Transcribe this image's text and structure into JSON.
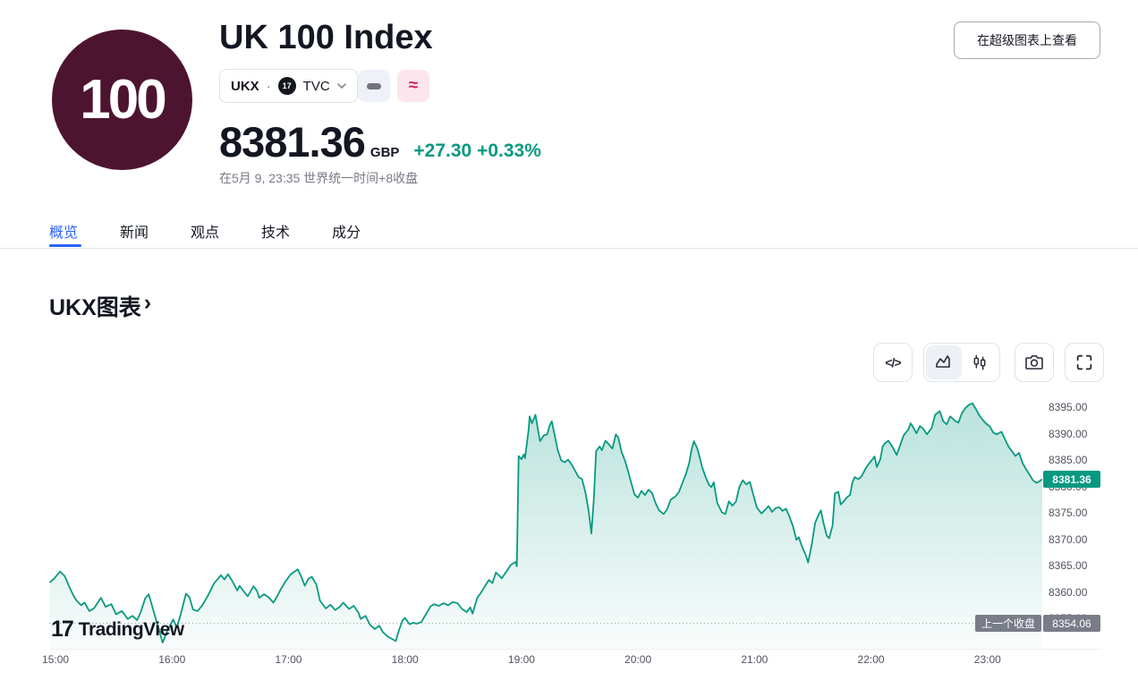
{
  "header": {
    "logo_text": "100",
    "title": "UK 100 Index",
    "symbol": "UKX",
    "separator": "·",
    "exchange": "TVC",
    "exchange_logo_text": "17",
    "price": "8381.36",
    "currency": "GBP",
    "change": "+27.30 +0.33%",
    "market_status": "在5月 9, 23:35 世界统一时间+8收盘",
    "supercharts_button": "在超级图表上查看"
  },
  "icons": {
    "code_glyph": "</>",
    "approx_glyph": "≈",
    "chevron_right": "›"
  },
  "tabs": {
    "overview": "概览",
    "news": "新闻",
    "ideas": "观点",
    "technicals": "技术",
    "components": "成分"
  },
  "section_title": "UKX图表",
  "watermark": {
    "mark": "17",
    "text": "TradingView"
  },
  "chart_data": {
    "type": "area",
    "title": "UKX图表",
    "line_color": "#089981",
    "grid": false,
    "last_price": 8381.36,
    "last_price_label": "8381.36",
    "prev_close": 8354.06,
    "prev_close_value_label": "8354.06",
    "prev_close_badge_label": "上一个收盘",
    "xlim_hours": [
      14.946,
      23.47
    ],
    "ylim": [
      8348.4,
      8397.6
    ],
    "x_ticks": [
      {
        "h": 15,
        "label": "15:00"
      },
      {
        "h": 16,
        "label": "16:00"
      },
      {
        "h": 17,
        "label": "17:00"
      },
      {
        "h": 18,
        "label": "18:00"
      },
      {
        "h": 19,
        "label": "19:00"
      },
      {
        "h": 20,
        "label": "20:00"
      },
      {
        "h": 21,
        "label": "21:00"
      },
      {
        "h": 22,
        "label": "22:00"
      },
      {
        "h": 23,
        "label": "23:00"
      }
    ],
    "y_ticks": [
      {
        "p": 8395,
        "label": "8395.00"
      },
      {
        "p": 8390,
        "label": "8390.00"
      },
      {
        "p": 8385,
        "label": "8385.00"
      },
      {
        "p": 8380,
        "label": "8380.00"
      },
      {
        "p": 8375,
        "label": "8375.00"
      },
      {
        "p": 8370,
        "label": "8370.00"
      },
      {
        "p": 8365,
        "label": "8365.00"
      },
      {
        "p": 8360,
        "label": "8360.00"
      },
      {
        "p": 8355,
        "label": "8355.00"
      }
    ],
    "series": [
      [
        14.95,
        8361.8
      ],
      [
        14.99,
        8362.6
      ],
      [
        15.04,
        8363.9
      ],
      [
        15.08,
        8363.0
      ],
      [
        15.12,
        8360.9
      ],
      [
        15.15,
        8359.5
      ],
      [
        15.18,
        8358.4
      ],
      [
        15.22,
        8357.5
      ],
      [
        15.25,
        8358.0
      ],
      [
        15.29,
        8356.4
      ],
      [
        15.33,
        8356.9
      ],
      [
        15.39,
        8358.9
      ],
      [
        15.43,
        8357.2
      ],
      [
        15.48,
        8357.7
      ],
      [
        15.52,
        8355.8
      ],
      [
        15.57,
        8356.4
      ],
      [
        15.62,
        8354.9
      ],
      [
        15.66,
        8355.5
      ],
      [
        15.7,
        8354.7
      ],
      [
        15.73,
        8356.1
      ],
      [
        15.77,
        8358.8
      ],
      [
        15.8,
        8359.6
      ],
      [
        15.83,
        8357.3
      ],
      [
        15.86,
        8355.0
      ],
      [
        15.89,
        8352.8
      ],
      [
        15.92,
        8350.4
      ],
      [
        15.96,
        8352.7
      ],
      [
        16.01,
        8354.8
      ],
      [
        16.04,
        8353.3
      ],
      [
        16.07,
        8355.4
      ],
      [
        16.12,
        8359.7
      ],
      [
        16.15,
        8359.0
      ],
      [
        16.18,
        8356.7
      ],
      [
        16.22,
        8356.4
      ],
      [
        16.26,
        8357.5
      ],
      [
        16.31,
        8359.4
      ],
      [
        16.36,
        8361.6
      ],
      [
        16.42,
        8363.2
      ],
      [
        16.45,
        8362.4
      ],
      [
        16.48,
        8363.4
      ],
      [
        16.52,
        8362.0
      ],
      [
        16.56,
        8360.3
      ],
      [
        16.58,
        8361.2
      ],
      [
        16.62,
        8360.0
      ],
      [
        16.65,
        8359.2
      ],
      [
        16.7,
        8361.1
      ],
      [
        16.73,
        8360.2
      ],
      [
        16.75,
        8358.9
      ],
      [
        16.79,
        8359.6
      ],
      [
        16.83,
        8359.0
      ],
      [
        16.87,
        8358.0
      ],
      [
        16.9,
        8359.1
      ],
      [
        16.93,
        8360.4
      ],
      [
        16.97,
        8361.9
      ],
      [
        17.02,
        8363.4
      ],
      [
        17.08,
        8364.3
      ],
      [
        17.11,
        8362.9
      ],
      [
        17.14,
        8361.2
      ],
      [
        17.17,
        8362.5
      ],
      [
        17.2,
        8362.9
      ],
      [
        17.24,
        8361.4
      ],
      [
        17.27,
        8358.4
      ],
      [
        17.32,
        8356.9
      ],
      [
        17.36,
        8357.6
      ],
      [
        17.4,
        8356.6
      ],
      [
        17.44,
        8357.2
      ],
      [
        17.47,
        8358.0
      ],
      [
        17.52,
        8356.8
      ],
      [
        17.56,
        8357.4
      ],
      [
        17.6,
        8356.1
      ],
      [
        17.62,
        8354.9
      ],
      [
        17.66,
        8355.5
      ],
      [
        17.7,
        8353.8
      ],
      [
        17.74,
        8353.0
      ],
      [
        17.78,
        8353.6
      ],
      [
        17.81,
        8352.4
      ],
      [
        17.85,
        8351.6
      ],
      [
        17.92,
        8350.7
      ],
      [
        17.95,
        8352.9
      ],
      [
        17.98,
        8354.7
      ],
      [
        18.0,
        8355.1
      ],
      [
        18.04,
        8353.9
      ],
      [
        18.07,
        8354.2
      ],
      [
        18.1,
        8354.0
      ],
      [
        18.14,
        8354.3
      ],
      [
        18.18,
        8355.8
      ],
      [
        18.22,
        8357.3
      ],
      [
        18.25,
        8357.7
      ],
      [
        18.29,
        8357.4
      ],
      [
        18.33,
        8357.9
      ],
      [
        18.37,
        8357.5
      ],
      [
        18.41,
        8358.1
      ],
      [
        18.45,
        8357.9
      ],
      [
        18.49,
        8356.8
      ],
      [
        18.53,
        8356.2
      ],
      [
        18.56,
        8357.1
      ],
      [
        18.58,
        8355.9
      ],
      [
        18.62,
        8358.9
      ],
      [
        18.65,
        8359.8
      ],
      [
        18.68,
        8360.9
      ],
      [
        18.72,
        8362.3
      ],
      [
        18.75,
        8361.7
      ],
      [
        18.78,
        8363.7
      ],
      [
        18.81,
        8363.1
      ],
      [
        18.83,
        8362.6
      ],
      [
        18.87,
        8363.9
      ],
      [
        18.91,
        8365.2
      ],
      [
        18.95,
        8365.7
      ],
      [
        18.96,
        8364.9
      ],
      [
        18.975,
        8385.8
      ],
      [
        19.0,
        8385.2
      ],
      [
        19.02,
        8386.1
      ],
      [
        19.03,
        8385.4
      ],
      [
        19.06,
        8390.5
      ],
      [
        19.07,
        8393.3
      ],
      [
        19.09,
        8392.0
      ],
      [
        19.12,
        8393.6
      ],
      [
        19.14,
        8391.0
      ],
      [
        19.16,
        8388.6
      ],
      [
        19.19,
        8389.7
      ],
      [
        19.22,
        8389.9
      ],
      [
        19.24,
        8391.5
      ],
      [
        19.26,
        8392.4
      ],
      [
        19.28,
        8390.2
      ],
      [
        19.31,
        8387.0
      ],
      [
        19.34,
        8385.0
      ],
      [
        19.37,
        8384.6
      ],
      [
        19.4,
        8385.1
      ],
      [
        19.43,
        8384.2
      ],
      [
        19.46,
        8383.0
      ],
      [
        19.49,
        8381.8
      ],
      [
        19.52,
        8381.4
      ],
      [
        19.55,
        8378.8
      ],
      [
        19.58,
        8374.9
      ],
      [
        19.6,
        8371.1
      ],
      [
        19.62,
        8377.5
      ],
      [
        19.64,
        8386.7
      ],
      [
        19.67,
        8387.6
      ],
      [
        19.69,
        8386.9
      ],
      [
        19.72,
        8388.7
      ],
      [
        19.75,
        8388.0
      ],
      [
        19.78,
        8387.2
      ],
      [
        19.81,
        8389.9
      ],
      [
        19.83,
        8389.3
      ],
      [
        19.86,
        8386.5
      ],
      [
        19.89,
        8384.8
      ],
      [
        19.92,
        8382.5
      ],
      [
        19.95,
        8380.1
      ],
      [
        19.97,
        8378.5
      ],
      [
        20.0,
        8377.9
      ],
      [
        20.03,
        8379.2
      ],
      [
        20.06,
        8378.4
      ],
      [
        20.09,
        8379.4
      ],
      [
        20.12,
        8378.8
      ],
      [
        20.15,
        8376.9
      ],
      [
        20.18,
        8375.5
      ],
      [
        20.22,
        8374.8
      ],
      [
        20.25,
        8375.7
      ],
      [
        20.28,
        8377.5
      ],
      [
        20.32,
        8378.1
      ],
      [
        20.35,
        8378.9
      ],
      [
        20.38,
        8380.6
      ],
      [
        20.41,
        8382.3
      ],
      [
        20.44,
        8384.5
      ],
      [
        20.46,
        8387.0
      ],
      [
        20.48,
        8388.6
      ],
      [
        20.51,
        8387.2
      ],
      [
        20.53,
        8385.5
      ],
      [
        20.55,
        8383.7
      ],
      [
        20.58,
        8381.8
      ],
      [
        20.61,
        8380.3
      ],
      [
        20.63,
        8379.9
      ],
      [
        20.65,
        8380.8
      ],
      [
        20.68,
        8376.9
      ],
      [
        20.72,
        8375.1
      ],
      [
        20.75,
        8374.8
      ],
      [
        20.78,
        8377.2
      ],
      [
        20.81,
        8376.4
      ],
      [
        20.84,
        8377.1
      ],
      [
        20.87,
        8379.9
      ],
      [
        20.9,
        8381.2
      ],
      [
        20.93,
        8380.4
      ],
      [
        20.96,
        8380.9
      ],
      [
        20.99,
        8378.4
      ],
      [
        21.02,
        8376.0
      ],
      [
        21.06,
        8374.9
      ],
      [
        21.09,
        8375.6
      ],
      [
        21.12,
        8376.3
      ],
      [
        21.15,
        8375.2
      ],
      [
        21.18,
        8375.9
      ],
      [
        21.21,
        8376.1
      ],
      [
        21.24,
        8375.4
      ],
      [
        21.27,
        8375.8
      ],
      [
        21.3,
        8374.3
      ],
      [
        21.33,
        8372.5
      ],
      [
        21.36,
        8369.9
      ],
      [
        21.38,
        8370.4
      ],
      [
        21.41,
        8368.5
      ],
      [
        21.44,
        8367.0
      ],
      [
        21.46,
        8365.6
      ],
      [
        21.49,
        8368.9
      ],
      [
        21.52,
        8373.1
      ],
      [
        21.55,
        8374.7
      ],
      [
        21.57,
        8375.5
      ],
      [
        21.59,
        8373.3
      ],
      [
        21.62,
        8370.7
      ],
      [
        21.64,
        8370.2
      ],
      [
        21.67,
        8372.6
      ],
      [
        21.69,
        8378.7
      ],
      [
        21.72,
        8379.0
      ],
      [
        21.74,
        8376.6
      ],
      [
        21.77,
        8377.3
      ],
      [
        21.79,
        8377.9
      ],
      [
        21.82,
        8378.4
      ],
      [
        21.84,
        8380.7
      ],
      [
        21.86,
        8381.8
      ],
      [
        21.89,
        8381.4
      ],
      [
        21.92,
        8382.0
      ],
      [
        21.95,
        8383.3
      ],
      [
        21.98,
        8384.3
      ],
      [
        22.01,
        8385.1
      ],
      [
        22.03,
        8385.7
      ],
      [
        22.05,
        8383.7
      ],
      [
        22.08,
        8385.2
      ],
      [
        22.1,
        8387.6
      ],
      [
        22.12,
        8388.2
      ],
      [
        22.15,
        8388.7
      ],
      [
        22.17,
        8388.0
      ],
      [
        22.19,
        8387.3
      ],
      [
        22.22,
        8386.0
      ],
      [
        22.25,
        8387.8
      ],
      [
        22.28,
        8389.7
      ],
      [
        22.32,
        8390.8
      ],
      [
        22.34,
        8392.0
      ],
      [
        22.36,
        8391.3
      ],
      [
        22.39,
        8390.1
      ],
      [
        22.42,
        8391.5
      ],
      [
        22.45,
        8390.9
      ],
      [
        22.48,
        8389.9
      ],
      [
        22.52,
        8391.1
      ],
      [
        22.55,
        8393.6
      ],
      [
        22.59,
        8394.3
      ],
      [
        22.62,
        8392.4
      ],
      [
        22.65,
        8391.8
      ],
      [
        22.68,
        8393.3
      ],
      [
        22.72,
        8392.5
      ],
      [
        22.75,
        8392.1
      ],
      [
        22.78,
        8393.9
      ],
      [
        22.81,
        8394.9
      ],
      [
        22.84,
        8395.5
      ],
      [
        22.87,
        8395.8
      ],
      [
        22.9,
        8394.7
      ],
      [
        22.93,
        8393.5
      ],
      [
        22.96,
        8392.6
      ],
      [
        22.99,
        8391.9
      ],
      [
        23.02,
        8391.4
      ],
      [
        23.05,
        8390.2
      ],
      [
        23.08,
        8389.9
      ],
      [
        23.12,
        8390.4
      ],
      [
        23.15,
        8389.0
      ],
      [
        23.18,
        8387.6
      ],
      [
        23.21,
        8386.7
      ],
      [
        23.24,
        8385.8
      ],
      [
        23.27,
        8386.4
      ],
      [
        23.3,
        8384.5
      ],
      [
        23.33,
        8383.3
      ],
      [
        23.36,
        8382.3
      ],
      [
        23.39,
        8381.2
      ],
      [
        23.42,
        8380.7
      ],
      [
        23.44,
        8380.9
      ],
      [
        23.47,
        8381.4
      ]
    ]
  }
}
